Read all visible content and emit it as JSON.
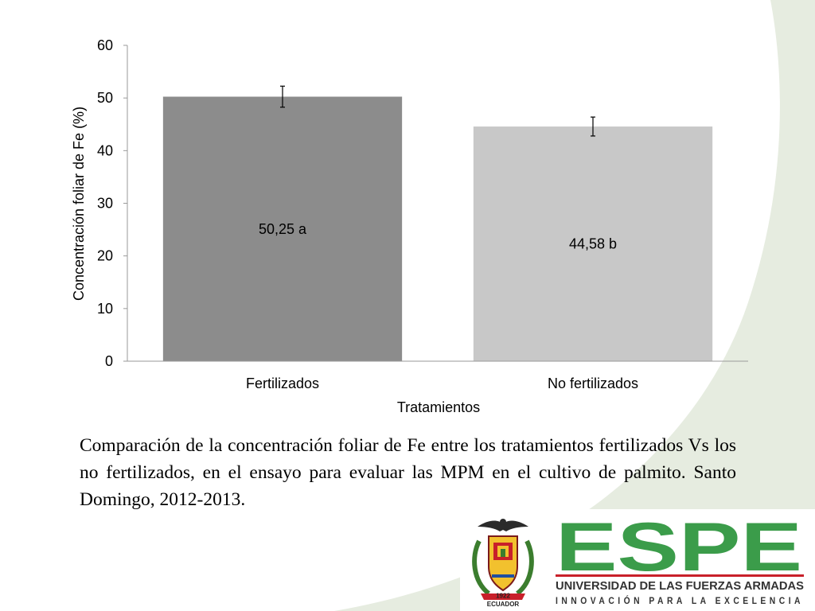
{
  "chart_data": {
    "type": "bar",
    "title": "",
    "categories": [
      "Fertilizados",
      "No fertilizados"
    ],
    "values": [
      50.25,
      44.58
    ],
    "error": [
      2.0,
      1.8
    ],
    "value_labels": [
      "50,25 a",
      "44,58 b"
    ],
    "bar_colors": [
      "#8c8c8c",
      "#c8c8c8"
    ],
    "xlabel": "Tratamientos",
    "ylabel": "Concentración foliar de Fe (%)",
    "ylim": [
      0,
      60
    ],
    "yticks": [
      "0",
      "10",
      "20",
      "30",
      "40",
      "50",
      "60"
    ],
    "grid": false,
    "legend": false
  },
  "caption": "Comparación de la concentración foliar de Fe entre los tratamientos fertilizados Vs los no fertilizados, en el ensayo para evaluar las MPM en el cultivo de palmito. Santo Domingo, 2012-2013.",
  "logo": {
    "wordmark": "ESPE",
    "university": "UNIVERSIDAD DE LAS FUERZAS ARMADAS",
    "motto": "INNOVACIÓN PARA LA EXCELENCIA",
    "crest_year": "1922",
    "crest_country": "ECUADOR",
    "colors": {
      "green": "#3b9c4a",
      "red": "#c8202a"
    }
  },
  "background_colors": {
    "swoosh": "#e6ece0"
  }
}
